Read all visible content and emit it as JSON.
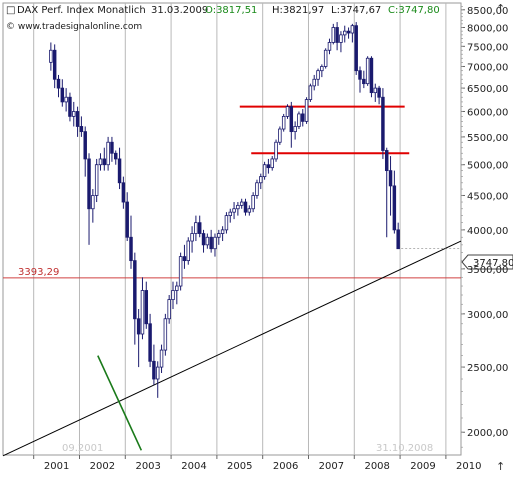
{
  "header": {
    "title": "DAX Perf. Index Monatlich",
    "date": "31.03.2009",
    "open": "O:3817,51",
    "high": "H:3821,97",
    "low": "L:3747,67",
    "close": "C:3747,80",
    "source": "© www.tradesignalonline.com"
  },
  "colors": {
    "background": "#ffffff",
    "grid": "#b8b8b8",
    "up_candle": "#ffffff",
    "down_candle": "#1a1a6e",
    "candle_outline": "#1a1a6e",
    "resistance_line": "#e00000",
    "level_line": "#d04040",
    "trend_line": "#000000",
    "green_line": "#1a7a1a",
    "axis_text": "#222222",
    "level_text": "#c03030",
    "watermark_text": "#c8c8c8"
  },
  "chart_data": {
    "type": "candlestick",
    "title": "DAX Perf. Index Monatlich",
    "x_ticks": [
      "2001",
      "2002",
      "2003",
      "2004",
      "2005",
      "2006",
      "2007",
      "2008",
      "2009",
      "2010"
    ],
    "y_ticks": [
      "2000,00",
      "2500,00",
      "3000,00",
      "3500,00",
      "4000,00",
      "4500,00",
      "5000,00",
      "5500,00",
      "6000,00",
      "6500,00",
      "7000,00",
      "7500,00",
      "8000,00",
      "8500,00"
    ],
    "y_scale": "log",
    "ylim": [
      1850,
      8700
    ],
    "x_range": [
      2000.33,
      2010.33
    ],
    "grid": "vertical lines at years",
    "last_value_label": "3747,80",
    "horizontal_level": {
      "value": 3393.29,
      "label": "3393,29"
    },
    "resistance_lines": [
      {
        "x1": 2005.5,
        "x2": 2009.1,
        "y": 6100
      },
      {
        "x1": 2005.75,
        "x2": 2009.2,
        "y": 5200
      }
    ],
    "trend_line": {
      "p1": [
        2000.33,
        1845
      ],
      "p2": [
        2010.33,
        3850
      ]
    },
    "green_line": {
      "p1": [
        2002.4,
        2600
      ],
      "p2": [
        2003.35,
        1880
      ]
    },
    "annotations": [
      "09.2001",
      "31.10.2008"
    ],
    "ohlc": [
      [
        7100,
        7600,
        6900,
        7400
      ],
      [
        7400,
        7550,
        6500,
        6700
      ],
      [
        6700,
        6800,
        6300,
        6500
      ],
      [
        6500,
        6700,
        6100,
        6200
      ],
      [
        6200,
        6500,
        6000,
        6300
      ],
      [
        6300,
        6400,
        5800,
        5900
      ],
      [
        5900,
        6200,
        5700,
        6000
      ],
      [
        6000,
        6100,
        5500,
        5700
      ],
      [
        5700,
        5900,
        5500,
        5600
      ],
      [
        5600,
        5700,
        4800,
        5100
      ],
      [
        5100,
        5200,
        3800,
        4300
      ],
      [
        4300,
        4600,
        4100,
        4500
      ],
      [
        4500,
        5100,
        4400,
        5000
      ],
      [
        5000,
        5200,
        4900,
        5100
      ],
      [
        5100,
        5300,
        4900,
        5000
      ],
      [
        5000,
        5500,
        4900,
        5400
      ],
      [
        5400,
        5500,
        5050,
        5200
      ],
      [
        5200,
        5250,
        5000,
        5100
      ],
      [
        5100,
        5300,
        4600,
        4700
      ],
      [
        4700,
        4800,
        4300,
        4400
      ],
      [
        4400,
        4550,
        3850,
        3900
      ],
      [
        3900,
        4200,
        3500,
        3600
      ],
      [
        3600,
        3700,
        2700,
        2950
      ],
      [
        2950,
        3050,
        2500,
        2800
      ],
      [
        2800,
        3400,
        2750,
        3250
      ],
      [
        3250,
        3350,
        2850,
        2900
      ],
      [
        2900,
        3000,
        2500,
        2550
      ],
      [
        2550,
        2700,
        2350,
        2400
      ],
      [
        2400,
        2550,
        2250,
        2500
      ],
      [
        2500,
        2700,
        2450,
        2650
      ],
      [
        2650,
        3000,
        2600,
        2950
      ],
      [
        2950,
        3200,
        2900,
        3150
      ],
      [
        3150,
        3350,
        3050,
        3250
      ],
      [
        3250,
        3350,
        3100,
        3300
      ],
      [
        3300,
        3700,
        3250,
        3650
      ],
      [
        3650,
        3800,
        3500,
        3600
      ],
      [
        3600,
        3900,
        3550,
        3850
      ],
      [
        3850,
        4050,
        3700,
        3950
      ],
      [
        3950,
        4200,
        3850,
        4100
      ],
      [
        4100,
        4200,
        3900,
        3950
      ],
      [
        3950,
        4000,
        3700,
        3800
      ],
      [
        3800,
        3950,
        3750,
        3900
      ],
      [
        3900,
        4000,
        3700,
        3750
      ],
      [
        3750,
        3950,
        3650,
        3900
      ],
      [
        3900,
        4000,
        3800,
        3950
      ],
      [
        3950,
        4050,
        3850,
        4000
      ],
      [
        4000,
        4250,
        3950,
        4200
      ],
      [
        4200,
        4300,
        4100,
        4250
      ],
      [
        4250,
        4400,
        4150,
        4300
      ],
      [
        4300,
        4400,
        4200,
        4350
      ],
      [
        4350,
        4450,
        4300,
        4400
      ],
      [
        4400,
        4450,
        4200,
        4250
      ],
      [
        4250,
        4350,
        4200,
        4300
      ],
      [
        4300,
        4550,
        4250,
        4500
      ],
      [
        4500,
        4750,
        4450,
        4700
      ],
      [
        4700,
        4850,
        4600,
        4800
      ],
      [
        4800,
        5050,
        4750,
        5000
      ],
      [
        5000,
        5100,
        4850,
        4950
      ],
      [
        4950,
        5150,
        4900,
        5100
      ],
      [
        5100,
        5450,
        5050,
        5400
      ],
      [
        5400,
        5700,
        5350,
        5650
      ],
      [
        5650,
        5950,
        5600,
        5900
      ],
      [
        5900,
        6150,
        5850,
        6100
      ],
      [
        6100,
        6200,
        5300,
        5600
      ],
      [
        5600,
        5800,
        5450,
        5700
      ],
      [
        5700,
        6000,
        5650,
        5950
      ],
      [
        5950,
        6050,
        5700,
        5800
      ],
      [
        5800,
        6300,
        5750,
        6250
      ],
      [
        6250,
        6600,
        6200,
        6550
      ],
      [
        6550,
        6800,
        6450,
        6700
      ],
      [
        6700,
        6950,
        6550,
        6900
      ],
      [
        6900,
        7050,
        6750,
        7000
      ],
      [
        7000,
        7450,
        6950,
        7400
      ],
      [
        7400,
        7700,
        7300,
        7600
      ],
      [
        7600,
        8100,
        7550,
        8000
      ],
      [
        8000,
        8150,
        7400,
        7600
      ],
      [
        7600,
        7900,
        7350,
        7800
      ],
      [
        7800,
        8050,
        7600,
        7900
      ],
      [
        7900,
        8000,
        7700,
        7850
      ],
      [
        7850,
        8100,
        7600,
        8050
      ],
      [
        8050,
        8150,
        6800,
        6900
      ],
      [
        6900,
        7000,
        6400,
        6700
      ],
      [
        6700,
        6900,
        6500,
        6600
      ],
      [
        6600,
        7250,
        6550,
        7200
      ],
      [
        7200,
        7250,
        6300,
        6400
      ],
      [
        6400,
        6600,
        6200,
        6500
      ],
      [
        6500,
        6550,
        6150,
        6300
      ],
      [
        6300,
        6500,
        5100,
        5250
      ],
      [
        5250,
        5300,
        3900,
        4900
      ],
      [
        4900,
        5150,
        4200,
        4650
      ],
      [
        4650,
        4900,
        3950,
        4000
      ],
      [
        4000,
        4100,
        3750,
        3750
      ]
    ]
  }
}
